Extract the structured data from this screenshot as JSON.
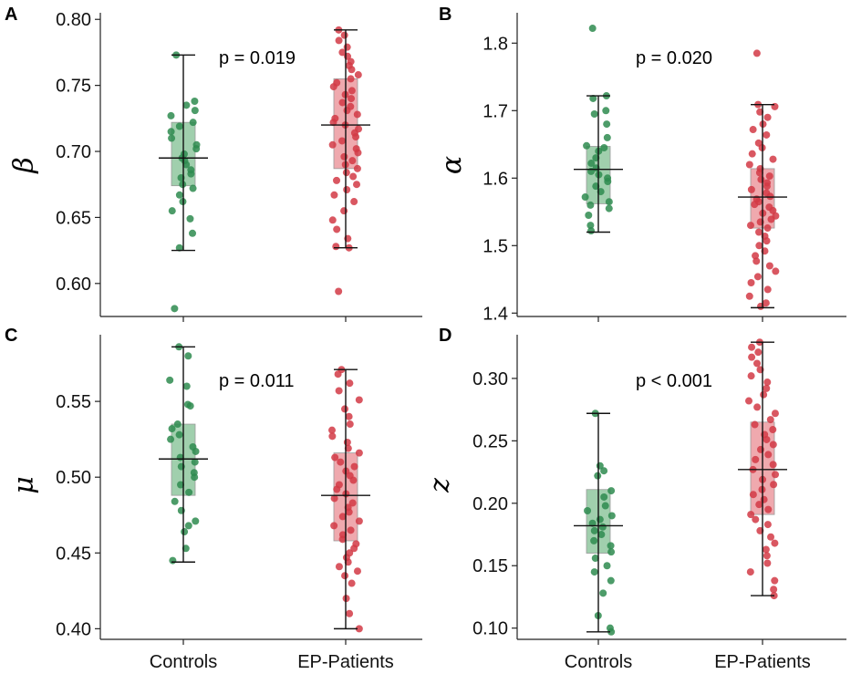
{
  "figure": {
    "panels": [
      {
        "letter": "A",
        "ylabel": "β",
        "p_text": "p = 0.019",
        "yticks": [
          "0.60",
          "0.65",
          "0.70",
          "0.75",
          "0.80"
        ],
        "xticks": [
          "Controls",
          "EP-Patients"
        ]
      },
      {
        "letter": "B",
        "ylabel": "α",
        "p_text": "p = 0.020",
        "yticks": [
          "1.4",
          "1.5",
          "1.6",
          "1.7",
          "1.8"
        ],
        "xticks": [
          "Controls",
          "EP-Patients"
        ]
      },
      {
        "letter": "C",
        "ylabel": "μ",
        "p_text": "p = 0.011",
        "yticks": [
          "0.40",
          "0.45",
          "0.50",
          "0.55"
        ],
        "xticks": [
          "Controls",
          "EP-Patients"
        ]
      },
      {
        "letter": "D",
        "ylabel": "z",
        "p_text": "p < 0.001",
        "yticks": [
          "0.10",
          "0.15",
          "0.20",
          "0.25",
          "0.30"
        ],
        "xticks": [
          "Controls",
          "EP-Patients"
        ]
      }
    ]
  },
  "colors": {
    "controls": "#2e8b4f",
    "controls_box": "#8fc79f",
    "patients": "#d23a45",
    "patients_box": "#ec9aa0",
    "axis": "#222222"
  },
  "chart_data": [
    {
      "type": "scatter",
      "ylabel": "β",
      "ylim": [
        0.575,
        0.805
      ],
      "grid": false,
      "legend": "none",
      "categories": [
        "Controls",
        "EP-Patients"
      ],
      "annotation": "p = 0.019",
      "series": [
        {
          "name": "Controls",
          "box": {
            "min": 0.625,
            "q1": 0.674,
            "median": 0.695,
            "q3": 0.722,
            "max": 0.773
          },
          "points": [
            0.773,
            0.738,
            0.735,
            0.731,
            0.727,
            0.722,
            0.719,
            0.715,
            0.71,
            0.705,
            0.702,
            0.698,
            0.695,
            0.693,
            0.69,
            0.686,
            0.683,
            0.68,
            0.675,
            0.672,
            0.667,
            0.662,
            0.655,
            0.649,
            0.638,
            0.627,
            0.581
          ]
        },
        {
          "name": "EP-Patients",
          "box": {
            "min": 0.627,
            "q1": 0.687,
            "median": 0.72,
            "q3": 0.755,
            "max": 0.792
          },
          "points": [
            0.792,
            0.788,
            0.784,
            0.779,
            0.775,
            0.772,
            0.768,
            0.765,
            0.762,
            0.758,
            0.755,
            0.752,
            0.749,
            0.746,
            0.743,
            0.74,
            0.737,
            0.734,
            0.731,
            0.728,
            0.725,
            0.722,
            0.72,
            0.717,
            0.714,
            0.711,
            0.708,
            0.705,
            0.702,
            0.699,
            0.696,
            0.693,
            0.69,
            0.687,
            0.684,
            0.681,
            0.678,
            0.675,
            0.671,
            0.667,
            0.662,
            0.655,
            0.648,
            0.641,
            0.634,
            0.628,
            0.627,
            0.594
          ]
        }
      ]
    },
    {
      "type": "scatter",
      "ylabel": "α",
      "ylim": [
        1.395,
        1.845
      ],
      "grid": false,
      "legend": "none",
      "categories": [
        "Controls",
        "EP-Patients"
      ],
      "annotation": "p = 0.020",
      "series": [
        {
          "name": "Controls",
          "box": {
            "min": 1.52,
            "q1": 1.562,
            "median": 1.613,
            "q3": 1.647,
            "max": 1.722
          },
          "points": [
            1.822,
            1.722,
            1.718,
            1.7,
            1.695,
            1.68,
            1.66,
            1.648,
            1.645,
            1.64,
            1.63,
            1.622,
            1.615,
            1.61,
            1.605,
            1.6,
            1.595,
            1.588,
            1.58,
            1.572,
            1.565,
            1.56,
            1.555,
            1.545,
            1.53,
            1.522
          ]
        },
        {
          "name": "EP-Patients",
          "box": {
            "min": 1.408,
            "q1": 1.526,
            "median": 1.572,
            "q3": 1.614,
            "max": 1.709
          },
          "points": [
            1.785,
            1.709,
            1.706,
            1.698,
            1.69,
            1.68,
            1.672,
            1.664,
            1.652,
            1.645,
            1.636,
            1.628,
            1.62,
            1.614,
            1.608,
            1.603,
            1.598,
            1.593,
            1.588,
            1.583,
            1.578,
            1.573,
            1.569,
            1.565,
            1.561,
            1.557,
            1.552,
            1.548,
            1.544,
            1.539,
            1.535,
            1.53,
            1.526,
            1.52,
            1.514,
            1.507,
            1.5,
            1.492,
            1.485,
            1.477,
            1.47,
            1.462,
            1.454,
            1.445,
            1.435,
            1.425,
            1.415,
            1.41
          ]
        }
      ]
    },
    {
      "type": "scatter",
      "ylabel": "μ",
      "ylim": [
        0.393,
        0.594
      ],
      "grid": false,
      "legend": "none",
      "categories": [
        "Controls",
        "EP-Patients"
      ],
      "annotation": "p = 0.011",
      "series": [
        {
          "name": "Controls",
          "box": {
            "min": 0.444,
            "q1": 0.488,
            "median": 0.512,
            "q3": 0.535,
            "max": 0.586
          },
          "points": [
            0.586,
            0.58,
            0.564,
            0.56,
            0.548,
            0.547,
            0.535,
            0.532,
            0.528,
            0.525,
            0.52,
            0.517,
            0.513,
            0.51,
            0.507,
            0.503,
            0.5,
            0.495,
            0.49,
            0.484,
            0.478,
            0.471,
            0.468,
            0.464,
            0.453,
            0.445
          ]
        },
        {
          "name": "EP-Patients",
          "box": {
            "min": 0.4,
            "q1": 0.458,
            "median": 0.488,
            "q3": 0.516,
            "max": 0.571
          },
          "points": [
            0.571,
            0.568,
            0.562,
            0.557,
            0.551,
            0.545,
            0.54,
            0.535,
            0.531,
            0.527,
            0.523,
            0.519,
            0.516,
            0.513,
            0.51,
            0.507,
            0.504,
            0.501,
            0.498,
            0.495,
            0.492,
            0.489,
            0.486,
            0.483,
            0.48,
            0.477,
            0.474,
            0.471,
            0.468,
            0.465,
            0.462,
            0.459,
            0.456,
            0.453,
            0.45,
            0.447,
            0.444,
            0.441,
            0.438,
            0.435,
            0.43,
            0.42,
            0.41,
            0.4
          ]
        }
      ]
    },
    {
      "type": "scatter",
      "ylabel": "z",
      "ylim": [
        0.091,
        0.335
      ],
      "grid": false,
      "legend": "none",
      "categories": [
        "Controls",
        "EP-Patients"
      ],
      "annotation": "p < 0.001",
      "series": [
        {
          "name": "Controls",
          "box": {
            "min": 0.097,
            "q1": 0.16,
            "median": 0.182,
            "q3": 0.211,
            "max": 0.272
          },
          "points": [
            0.272,
            0.23,
            0.226,
            0.222,
            0.21,
            0.205,
            0.198,
            0.194,
            0.19,
            0.187,
            0.184,
            0.181,
            0.178,
            0.175,
            0.17,
            0.166,
            0.161,
            0.156,
            0.15,
            0.145,
            0.138,
            0.128,
            0.11,
            0.1,
            0.097
          ]
        },
        {
          "name": "EP-Patients",
          "box": {
            "min": 0.126,
            "q1": 0.191,
            "median": 0.227,
            "q3": 0.265,
            "max": 0.329
          },
          "points": [
            0.329,
            0.325,
            0.321,
            0.317,
            0.312,
            0.307,
            0.302,
            0.297,
            0.292,
            0.287,
            0.282,
            0.277,
            0.272,
            0.267,
            0.263,
            0.259,
            0.255,
            0.251,
            0.247,
            0.243,
            0.239,
            0.235,
            0.231,
            0.227,
            0.223,
            0.219,
            0.215,
            0.211,
            0.207,
            0.203,
            0.199,
            0.195,
            0.191,
            0.187,
            0.183,
            0.178,
            0.173,
            0.168,
            0.163,
            0.158,
            0.152,
            0.145,
            0.138,
            0.131,
            0.126
          ]
        }
      ]
    }
  ]
}
